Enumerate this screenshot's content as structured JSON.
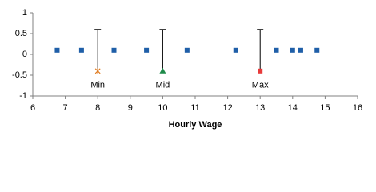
{
  "chart_data": {
    "type": "scatter",
    "x_label": "Hourly Wage",
    "xlim": [
      6,
      16
    ],
    "xticks": [
      6,
      7,
      8,
      9,
      10,
      11,
      12,
      13,
      14,
      15,
      16
    ],
    "ylim": [
      -1,
      1
    ],
    "yticks": [
      -1,
      -0.5,
      0,
      0.5,
      1
    ],
    "grid": false,
    "series": [
      {
        "marker": "square",
        "color": "#1f5fa8",
        "x": [
          6.75,
          7.5,
          8.5,
          9.5,
          10.75,
          12.25,
          13.5,
          14,
          14.25,
          14.75
        ],
        "values": [
          0.1,
          0.1,
          0.1,
          0.1,
          0.1,
          0.1,
          0.1,
          0.1,
          0.1,
          0.1
        ]
      },
      {
        "marker": "star",
        "color": "#e07b20",
        "x": [
          8
        ],
        "values": [
          -0.4
        ],
        "errors": [
          1
        ],
        "labels": [
          "Min"
        ]
      },
      {
        "marker": "triangle",
        "color": "#1e8a4a",
        "x": [
          10
        ],
        "values": [
          -0.4
        ],
        "errors": [
          1
        ],
        "labels": [
          "Mid"
        ]
      },
      {
        "marker": "square",
        "color": "#e83a3a",
        "x": [
          13
        ],
        "values": [
          -0.4
        ],
        "errors": [
          1
        ],
        "labels": [
          "Max"
        ]
      }
    ]
  }
}
